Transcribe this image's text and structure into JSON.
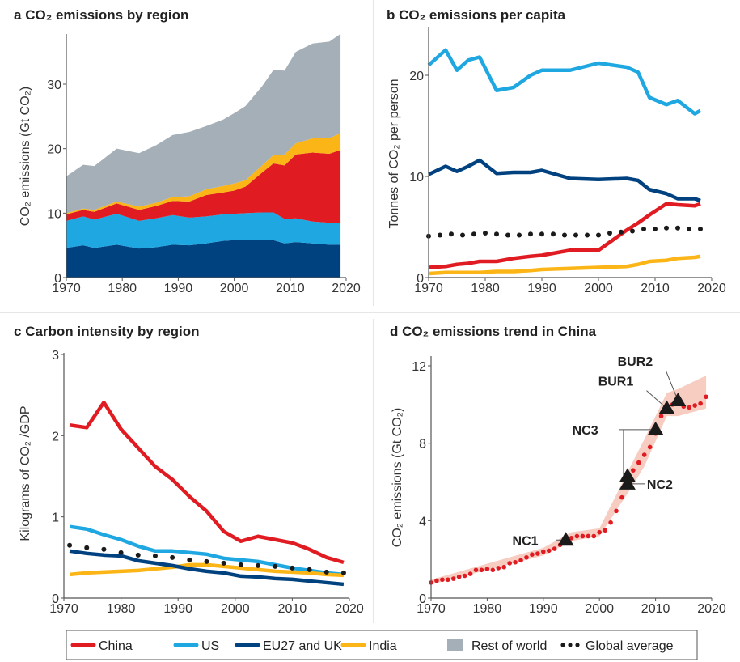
{
  "colors": {
    "China": "#e01b22",
    "US": "#1ea7e1",
    "EU27 and UK": "#00417f",
    "India": "#fbb516",
    "Rest of world": "#a4afb7",
    "Global average": "#1a1a1a",
    "band": "#f6c3b6"
  },
  "legend": [
    {
      "label": "China",
      "key": "China",
      "kind": "line"
    },
    {
      "label": "US",
      "key": "US",
      "kind": "line"
    },
    {
      "label": "EU27 and UK",
      "key": "EU27 and UK",
      "kind": "line"
    },
    {
      "label": "India",
      "key": "India",
      "kind": "line"
    },
    {
      "label": "Rest of world",
      "key": "Rest of world",
      "kind": "box"
    },
    {
      "label": "Global average",
      "key": "Global average",
      "kind": "dots"
    }
  ],
  "chart_data": [
    {
      "panel": "a",
      "type": "area",
      "stacked": true,
      "title": "CO₂ emissions by region",
      "ylabel": "CO₂ emissions (Gt CO₂)",
      "xlim": [
        1970,
        2020
      ],
      "ylim": [
        0,
        37
      ],
      "xticks": [
        1970,
        1980,
        1990,
        2000,
        2010,
        2020
      ],
      "yticks": [
        0,
        10,
        20,
        30
      ],
      "x": [
        1970,
        1973,
        1975,
        1979,
        1983,
        1986,
        1989,
        1992,
        1995,
        1998,
        2000,
        2002,
        2005,
        2007,
        2009,
        2011,
        2014,
        2017,
        2019
      ],
      "series": [
        {
          "name": "EU27 and UK",
          "values": [
            4.6,
            5.0,
            4.6,
            5.1,
            4.5,
            4.7,
            5.1,
            5.0,
            5.3,
            5.7,
            5.8,
            5.8,
            5.9,
            5.8,
            5.3,
            5.5,
            5.3,
            5.1,
            5.1
          ]
        },
        {
          "name": "US",
          "values": [
            4.2,
            4.5,
            4.4,
            4.8,
            4.3,
            4.5,
            4.6,
            4.3,
            4.2,
            4.1,
            4.1,
            4.2,
            4.2,
            4.3,
            3.8,
            3.7,
            3.4,
            3.4,
            3.3
          ]
        },
        {
          "name": "China",
          "values": [
            1.0,
            1.0,
            1.2,
            1.6,
            1.7,
            1.9,
            2.2,
            2.5,
            3.3,
            3.4,
            3.6,
            4.1,
            6.2,
            7.6,
            8.3,
            9.9,
            10.7,
            10.7,
            11.4
          ]
        },
        {
          "name": "India",
          "values": [
            0.2,
            0.2,
            0.3,
            0.3,
            0.5,
            0.5,
            0.6,
            0.8,
            0.9,
            1.0,
            1.1,
            1.0,
            1.1,
            1.3,
            1.7,
            1.7,
            2.2,
            2.4,
            2.6
          ]
        },
        {
          "name": "Rest of world",
          "values": [
            5.7,
            6.8,
            6.8,
            8.2,
            8.3,
            8.9,
            9.6,
            10.0,
            9.8,
            10.3,
            10.9,
            11.5,
            12.3,
            13.2,
            13.0,
            14.2,
            14.7,
            15.0,
            15.4
          ]
        }
      ]
    },
    {
      "panel": "b",
      "type": "line",
      "title": "CO₂ emissions per capita",
      "ylabel": "Tonnes of CO₂ per person",
      "xlim": [
        1970,
        2020
      ],
      "ylim": [
        0,
        24
      ],
      "xticks": [
        1970,
        1980,
        1990,
        2000,
        2010,
        2020
      ],
      "yticks": [
        0,
        10,
        20
      ],
      "x": [
        1970,
        1973,
        1975,
        1977,
        1979,
        1982,
        1985,
        1988,
        1990,
        1995,
        2000,
        2005,
        2007,
        2009,
        2012,
        2014,
        2017,
        2018
      ],
      "series": [
        {
          "name": "US",
          "values": [
            21,
            22.5,
            20.5,
            21.5,
            21.8,
            18.5,
            18.8,
            20,
            20.5,
            20.5,
            21.2,
            20.8,
            20.3,
            17.8,
            17.1,
            17.5,
            16.2,
            16.5
          ]
        },
        {
          "name": "EU27 and UK",
          "values": [
            10.2,
            11,
            10.5,
            11,
            11.6,
            10.3,
            10.4,
            10.4,
            10.6,
            9.8,
            9.7,
            9.8,
            9.6,
            8.7,
            8.3,
            7.8,
            7.8,
            7.6
          ]
        },
        {
          "name": "China",
          "values": [
            1,
            1.1,
            1.3,
            1.4,
            1.6,
            1.6,
            1.9,
            2.1,
            2.2,
            2.7,
            2.7,
            4.7,
            5.4,
            6.2,
            7.3,
            7.2,
            7.1,
            7.3
          ]
        },
        {
          "name": "India",
          "values": [
            0.4,
            0.5,
            0.5,
            0.5,
            0.5,
            0.6,
            0.6,
            0.7,
            0.8,
            0.9,
            1.0,
            1.1,
            1.3,
            1.6,
            1.7,
            1.9,
            2.0,
            2.1
          ]
        }
      ],
      "global_average": {
        "x": [
          1970,
          1972,
          1974,
          1976,
          1978,
          1980,
          1982,
          1984,
          1986,
          1988,
          1990,
          1992,
          1994,
          1996,
          1998,
          2000,
          2002,
          2004,
          2006,
          2008,
          2010,
          2012,
          2014,
          2016,
          2018
        ],
        "values": [
          4.1,
          4.2,
          4.3,
          4.2,
          4.3,
          4.4,
          4.3,
          4.2,
          4.2,
          4.3,
          4.3,
          4.3,
          4.2,
          4.2,
          4.2,
          4.2,
          4.4,
          4.5,
          4.6,
          4.8,
          4.8,
          4.9,
          4.9,
          4.8,
          4.8
        ]
      }
    },
    {
      "panel": "c",
      "type": "line",
      "title": "Carbon intensity by region",
      "ylabel": "Kilograms of CO₂ /GDP",
      "xlim": [
        1970,
        2020
      ],
      "ylim": [
        0,
        3
      ],
      "xticks": [
        1970,
        1980,
        1990,
        2000,
        2010,
        2020
      ],
      "yticks": [
        0,
        1,
        2,
        3
      ],
      "x": [
        1971,
        1974,
        1977,
        1980,
        1983,
        1986,
        1989,
        1992,
        1995,
        1998,
        2001,
        2004,
        2007,
        2010,
        2013,
        2016,
        2019
      ],
      "series": [
        {
          "name": "China",
          "values": [
            2.13,
            2.1,
            2.41,
            2.08,
            1.85,
            1.62,
            1.46,
            1.25,
            1.07,
            0.82,
            0.7,
            0.76,
            0.72,
            0.68,
            0.6,
            0.5,
            0.44
          ]
        },
        {
          "name": "US",
          "values": [
            0.88,
            0.85,
            0.78,
            0.72,
            0.64,
            0.58,
            0.58,
            0.56,
            0.54,
            0.49,
            0.47,
            0.45,
            0.41,
            0.37,
            0.34,
            0.31,
            0.29
          ]
        },
        {
          "name": "India",
          "values": [
            0.29,
            0.31,
            0.32,
            0.33,
            0.34,
            0.36,
            0.38,
            0.41,
            0.41,
            0.39,
            0.37,
            0.35,
            0.33,
            0.32,
            0.31,
            0.29,
            0.28
          ]
        },
        {
          "name": "EU27 and UK",
          "values": [
            0.58,
            0.55,
            0.53,
            0.52,
            0.46,
            0.43,
            0.4,
            0.36,
            0.33,
            0.31,
            0.27,
            0.26,
            0.24,
            0.23,
            0.21,
            0.19,
            0.17
          ]
        }
      ],
      "global_average": {
        "x": [
          1971,
          1974,
          1977,
          1980,
          1983,
          1986,
          1989,
          1992,
          1995,
          1998,
          2001,
          2004,
          2007,
          2010,
          2013,
          2016,
          2019
        ],
        "values": [
          0.65,
          0.62,
          0.6,
          0.56,
          0.53,
          0.52,
          0.5,
          0.47,
          0.45,
          0.43,
          0.41,
          0.4,
          0.39,
          0.37,
          0.35,
          0.32,
          0.31
        ]
      }
    },
    {
      "panel": "d",
      "type": "scatter",
      "title": "CO₂  emissions trend in China",
      "ylabel": "CO₂ emissions (Gt CO₂)",
      "xlim": [
        1970,
        2020
      ],
      "ylim": [
        0,
        12
      ],
      "xticks": [
        1970,
        1980,
        1990,
        2000,
        2010,
        2020
      ],
      "yticks": [
        0,
        4,
        8,
        12
      ],
      "x": [
        1970,
        1971,
        1972,
        1973,
        1974,
        1975,
        1976,
        1977,
        1978,
        1979,
        1980,
        1981,
        1982,
        1983,
        1984,
        1985,
        1986,
        1987,
        1988,
        1989,
        1990,
        1991,
        1992,
        1993,
        1994,
        1995,
        1996,
        1997,
        1998,
        1999,
        2000,
        2001,
        2002,
        2003,
        2004,
        2005,
        2006,
        2007,
        2008,
        2009,
        2010,
        2011,
        2012,
        2013,
        2014,
        2015,
        2016,
        2017,
        2018,
        2019
      ],
      "values": [
        0.8,
        0.9,
        0.95,
        0.95,
        1.0,
        1.1,
        1.15,
        1.25,
        1.45,
        1.45,
        1.5,
        1.45,
        1.55,
        1.6,
        1.8,
        1.85,
        1.95,
        2.1,
        2.25,
        2.3,
        2.4,
        2.45,
        2.55,
        2.75,
        2.95,
        3.1,
        3.2,
        3.2,
        3.2,
        3.2,
        3.4,
        3.5,
        3.9,
        4.5,
        5.2,
        5.9,
        6.6,
        7.0,
        7.4,
        7.8,
        8.5,
        9.4,
        9.8,
        10.0,
        10.1,
        9.9,
        9.85,
        9.95,
        10.05,
        10.4
      ],
      "uncertainty_band": {
        "x": [
          1970,
          1990,
          1995,
          2000,
          2005,
          2008,
          2012,
          2014,
          2019
        ],
        "lower": [
          0.7,
          2.2,
          2.95,
          3.2,
          5.4,
          6.8,
          9.4,
          9.4,
          9.8
        ],
        "upper": [
          0.95,
          2.6,
          3.4,
          3.6,
          6.5,
          8.2,
          10.6,
          10.8,
          11.5
        ]
      },
      "annotations": [
        {
          "label": "NC1",
          "points": [
            {
              "x": 1994,
              "y": 3.0
            }
          ]
        },
        {
          "label": "NC2",
          "points": [
            {
              "x": 2005,
              "y": 5.9
            }
          ]
        },
        {
          "label": "NC3",
          "points": [
            {
              "x": 2010,
              "y": 8.7
            },
            {
              "x": 2005,
              "y": 6.3
            }
          ]
        },
        {
          "label": "BUR1",
          "points": [
            {
              "x": 2012,
              "y": 9.8
            }
          ]
        },
        {
          "label": "BUR2",
          "points": [
            {
              "x": 2014,
              "y": 10.2
            }
          ]
        }
      ]
    }
  ]
}
